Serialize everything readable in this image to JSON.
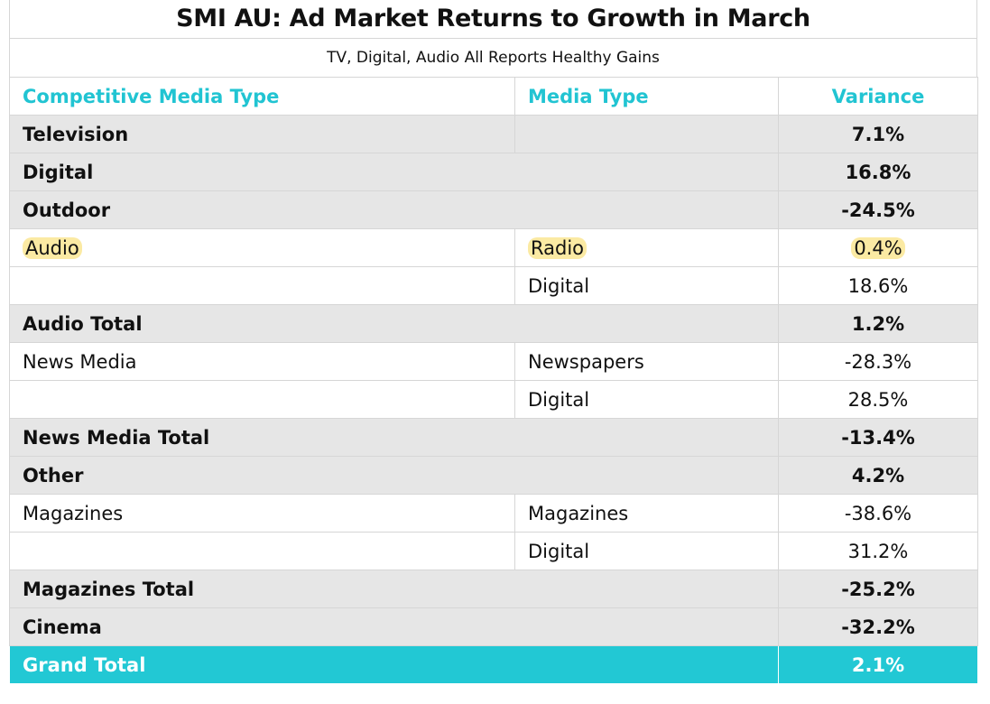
{
  "title": "SMI AU: Ad Market Returns to Growth in March",
  "subtitle": "TV, Digital, Audio All Reports Healthy Gains",
  "headers": {
    "col1": "Competitive Media Type",
    "col2": "Media Type",
    "col3": "Variance"
  },
  "rows": [
    {
      "type": "Television",
      "media": "",
      "variance": "7.1%"
    },
    {
      "type": "Digital",
      "media": "",
      "variance": "16.8%"
    },
    {
      "type": "Outdoor",
      "media": "",
      "variance": "-24.5%"
    },
    {
      "type": "Audio",
      "media": "Radio",
      "variance": "0.4%"
    },
    {
      "type": "",
      "media": "Digital",
      "variance": "18.6%"
    },
    {
      "type": "Audio Total",
      "media": "",
      "variance": "1.2%"
    },
    {
      "type": "News Media",
      "media": "Newspapers",
      "variance": "-28.3%"
    },
    {
      "type": "",
      "media": "Digital",
      "variance": "28.5%"
    },
    {
      "type": "News Media Total",
      "media": "",
      "variance": "-13.4%"
    },
    {
      "type": "Other",
      "media": "",
      "variance": "4.2%"
    },
    {
      "type": "Magazines",
      "media": "Magazines",
      "variance": "-38.6%"
    },
    {
      "type": "",
      "media": "Digital",
      "variance": "31.2%"
    },
    {
      "type": "Magazines Total",
      "media": "",
      "variance": "-25.2%"
    },
    {
      "type": "Cinema",
      "media": "",
      "variance": "-32.2%"
    }
  ],
  "grand_total": {
    "label": "Grand Total",
    "variance": "2.1%"
  },
  "colors": {
    "accent": "#21c4d2",
    "grand_total_bg": "#22c8d4",
    "row_grey": "#e6e6e6",
    "highlight": "#fbeaa3"
  }
}
